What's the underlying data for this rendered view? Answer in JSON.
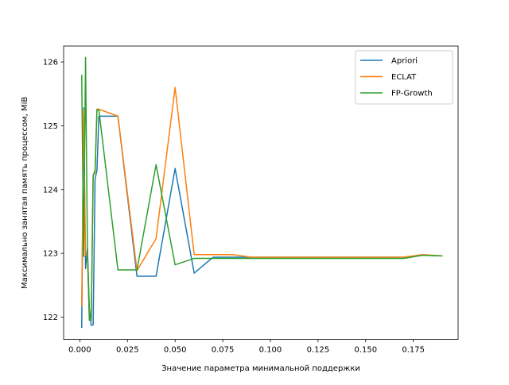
{
  "chart_data": {
    "type": "line",
    "title": "",
    "xlabel": "Значение параметра минимальной поддержки",
    "ylabel": "Максимально занятая память процессом, MiB",
    "xlim": [
      -0.0085,
      0.1985
    ],
    "ylim": [
      121.65,
      126.25
    ],
    "xticks": [
      0.0,
      0.025,
      0.05,
      0.075,
      0.1,
      0.125,
      0.15,
      0.175
    ],
    "xtick_labels": [
      "0.000",
      "0.025",
      "0.050",
      "0.075",
      "0.100",
      "0.125",
      "0.150",
      "0.175"
    ],
    "yticks": [
      122,
      123,
      124,
      125,
      126
    ],
    "ytick_labels": [
      "122",
      "123",
      "124",
      "125",
      "126"
    ],
    "grid": false,
    "legend_position": "top-right",
    "series": [
      {
        "name": "Apriori",
        "color": "#1f77b4",
        "x": [
          0.001,
          0.002,
          0.003,
          0.004,
          0.005,
          0.006,
          0.007,
          0.008,
          0.009,
          0.01,
          0.02,
          0.03,
          0.04,
          0.05,
          0.06,
          0.07,
          0.08,
          0.09,
          0.1,
          0.11,
          0.12,
          0.13,
          0.14,
          0.15,
          0.16,
          0.17,
          0.18,
          0.19
        ],
        "y": [
          121.84,
          125.28,
          122.76,
          123.08,
          122.14,
          121.87,
          121.88,
          124.17,
          124.3,
          125.15,
          125.15,
          122.64,
          122.64,
          124.33,
          122.69,
          122.94,
          122.94,
          122.94,
          122.94,
          122.94,
          122.94,
          122.94,
          122.94,
          122.94,
          122.94,
          122.94,
          122.97,
          122.96
        ]
      },
      {
        "name": "ECLAT",
        "color": "#ff7f0e",
        "x": [
          0.001,
          0.002,
          0.003,
          0.004,
          0.005,
          0.006,
          0.007,
          0.008,
          0.009,
          0.01,
          0.02,
          0.03,
          0.04,
          0.05,
          0.06,
          0.07,
          0.08,
          0.09,
          0.1,
          0.11,
          0.12,
          0.13,
          0.14,
          0.15,
          0.16,
          0.17,
          0.18,
          0.19
        ],
        "y": [
          122.18,
          125.25,
          122.97,
          122.97,
          121.98,
          121.98,
          124.22,
          124.27,
          125.26,
          125.26,
          125.15,
          122.73,
          123.23,
          125.6,
          122.98,
          122.98,
          122.98,
          122.94,
          122.94,
          122.94,
          122.94,
          122.94,
          122.94,
          122.94,
          122.94,
          122.94,
          122.98,
          122.96
        ]
      },
      {
        "name": "FP-Growth",
        "color": "#2ca02c",
        "x": [
          0.001,
          0.002,
          0.003,
          0.004,
          0.005,
          0.006,
          0.007,
          0.008,
          0.009,
          0.01,
          0.02,
          0.03,
          0.04,
          0.05,
          0.06,
          0.07,
          0.08,
          0.09,
          0.1,
          0.11,
          0.12,
          0.13,
          0.14,
          0.15,
          0.16,
          0.17,
          0.18,
          0.19
        ],
        "y": [
          125.79,
          122.95,
          126.07,
          123.07,
          121.95,
          121.95,
          124.22,
          124.3,
          125.25,
          125.25,
          122.74,
          122.74,
          124.39,
          122.82,
          122.92,
          122.92,
          122.92,
          122.92,
          122.92,
          122.92,
          122.92,
          122.92,
          122.92,
          122.92,
          122.92,
          122.92,
          122.97,
          122.96
        ]
      }
    ]
  }
}
